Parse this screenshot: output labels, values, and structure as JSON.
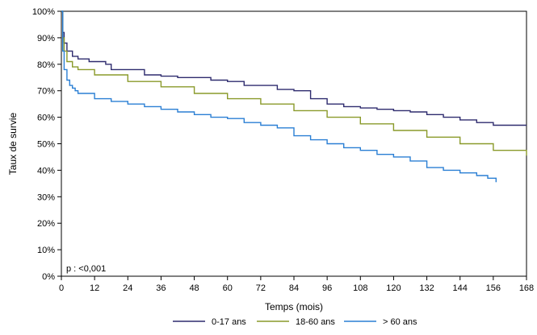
{
  "chart_data": {
    "type": "line",
    "xlabel": "Temps (mois)",
    "ylabel": "Taux de survie",
    "xlim": [
      0,
      168
    ],
    "ylim": [
      0,
      100
    ],
    "x_ticks": [
      0,
      12,
      24,
      36,
      48,
      60,
      72,
      84,
      96,
      108,
      120,
      132,
      144,
      156,
      168
    ],
    "y_ticks": [
      0,
      10,
      20,
      30,
      40,
      50,
      60,
      70,
      80,
      90,
      100
    ],
    "y_tick_suffix": "%",
    "grid": false,
    "legend_position": "bottom",
    "annotation": "p : <0,001",
    "series": [
      {
        "name": "0-17 ans",
        "color": "#2e2b6e",
        "points": [
          [
            0,
            100
          ],
          [
            0.5,
            92
          ],
          [
            1,
            88
          ],
          [
            2,
            85
          ],
          [
            4,
            83
          ],
          [
            6,
            82
          ],
          [
            10,
            81
          ],
          [
            16,
            80
          ],
          [
            18,
            78
          ],
          [
            24,
            78
          ],
          [
            30,
            76
          ],
          [
            36,
            75.5
          ],
          [
            42,
            75
          ],
          [
            48,
            75
          ],
          [
            54,
            74
          ],
          [
            60,
            73.5
          ],
          [
            66,
            72
          ],
          [
            72,
            72
          ],
          [
            78,
            70.5
          ],
          [
            84,
            70
          ],
          [
            90,
            67
          ],
          [
            96,
            65
          ],
          [
            102,
            64
          ],
          [
            108,
            63.5
          ],
          [
            114,
            63
          ],
          [
            120,
            62.5
          ],
          [
            126,
            62
          ],
          [
            132,
            61
          ],
          [
            138,
            60
          ],
          [
            144,
            59
          ],
          [
            150,
            58
          ],
          [
            156,
            57
          ],
          [
            168,
            57
          ]
        ]
      },
      {
        "name": "18-60 ans",
        "color": "#8a9a2a",
        "points": [
          [
            0,
            100
          ],
          [
            0.5,
            90
          ],
          [
            1,
            85
          ],
          [
            2,
            81
          ],
          [
            4,
            79
          ],
          [
            6,
            78
          ],
          [
            12,
            76
          ],
          [
            24,
            73.5
          ],
          [
            36,
            71.5
          ],
          [
            48,
            69
          ],
          [
            60,
            67
          ],
          [
            72,
            65
          ],
          [
            84,
            62.5
          ],
          [
            96,
            60
          ],
          [
            108,
            57.5
          ],
          [
            120,
            55
          ],
          [
            132,
            52.5
          ],
          [
            144,
            50
          ],
          [
            156,
            47.5
          ],
          [
            168,
            45.5
          ]
        ]
      },
      {
        "name": "> 60 ans",
        "color": "#2a7fd4",
        "points": [
          [
            0,
            100
          ],
          [
            0.5,
            85
          ],
          [
            1,
            78
          ],
          [
            2,
            74
          ],
          [
            3,
            72
          ],
          [
            4,
            71
          ],
          [
            5,
            70
          ],
          [
            6,
            69
          ],
          [
            12,
            67
          ],
          [
            18,
            66
          ],
          [
            24,
            65
          ],
          [
            30,
            64
          ],
          [
            36,
            63
          ],
          [
            42,
            62
          ],
          [
            48,
            61
          ],
          [
            54,
            60
          ],
          [
            60,
            59.5
          ],
          [
            66,
            58
          ],
          [
            72,
            57
          ],
          [
            78,
            56
          ],
          [
            84,
            53
          ],
          [
            90,
            51.5
          ],
          [
            96,
            50
          ],
          [
            102,
            48.5
          ],
          [
            108,
            47.5
          ],
          [
            114,
            46
          ],
          [
            120,
            45
          ],
          [
            126,
            43.5
          ],
          [
            132,
            41
          ],
          [
            138,
            40
          ],
          [
            144,
            39
          ],
          [
            150,
            38
          ],
          [
            154,
            37
          ],
          [
            157,
            35.5
          ]
        ]
      }
    ]
  }
}
